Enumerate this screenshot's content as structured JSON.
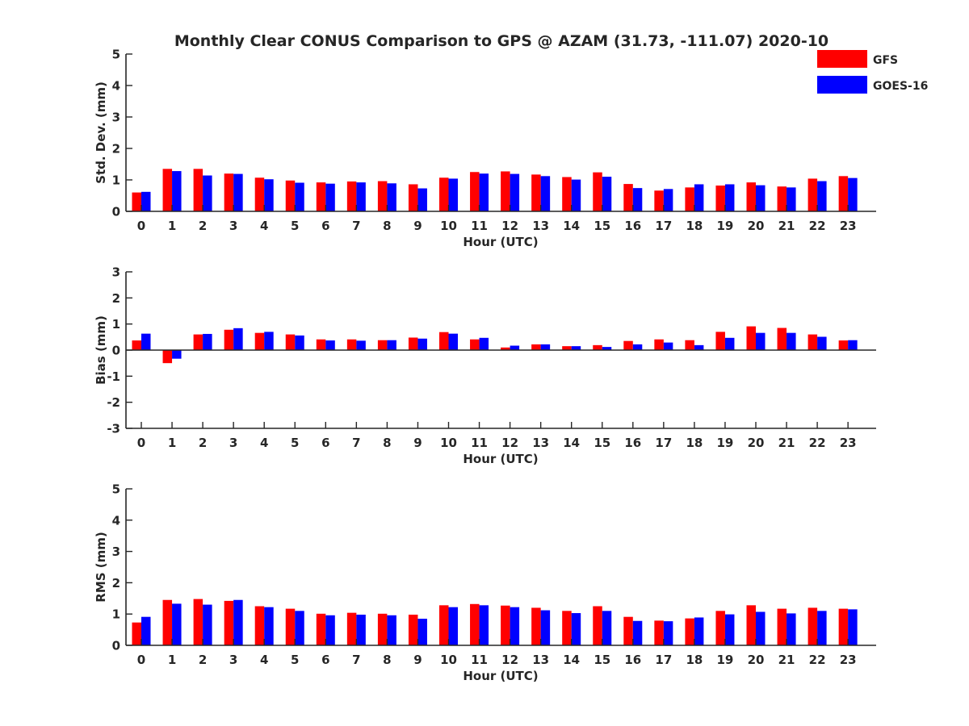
{
  "figure": {
    "title": "Monthly Clear CONUS Comparison to GPS @ AZAM (31.73, -111.07) 2020-10",
    "legend": [
      {
        "name": "GFS",
        "color": "#ff0000"
      },
      {
        "name": "GOES-16",
        "color": "#0000ff"
      }
    ],
    "legend_position": "top-right"
  },
  "chart_data": [
    {
      "type": "bar",
      "categories": [
        "0",
        "1",
        "2",
        "3",
        "4",
        "5",
        "6",
        "7",
        "8",
        "9",
        "10",
        "11",
        "12",
        "13",
        "14",
        "15",
        "16",
        "17",
        "18",
        "19",
        "20",
        "21",
        "22",
        "23"
      ],
      "xlabel": "Hour (UTC)",
      "ylabel": "Std. Dev. (mm)",
      "ylim": [
        0,
        5
      ],
      "yticks": [
        "0",
        "1",
        "2",
        "3",
        "4",
        "5"
      ],
      "grid": false,
      "series": [
        {
          "name": "GFS",
          "color": "#ff0000",
          "values": [
            0.6,
            1.35,
            1.35,
            1.2,
            1.07,
            0.98,
            0.92,
            0.95,
            0.96,
            0.86,
            1.07,
            1.25,
            1.27,
            1.17,
            1.09,
            1.24,
            0.87,
            0.66,
            0.76,
            0.82,
            0.92,
            0.79,
            1.04,
            1.12
          ]
        },
        {
          "name": "GOES-16",
          "color": "#0000ff",
          "values": [
            0.62,
            1.28,
            1.14,
            1.19,
            1.02,
            0.91,
            0.88,
            0.92,
            0.89,
            0.73,
            1.04,
            1.2,
            1.19,
            1.12,
            1.01,
            1.1,
            0.74,
            0.71,
            0.86,
            0.86,
            0.83,
            0.76,
            0.96,
            1.06
          ]
        }
      ]
    },
    {
      "type": "bar",
      "categories": [
        "0",
        "1",
        "2",
        "3",
        "4",
        "5",
        "6",
        "7",
        "8",
        "9",
        "10",
        "11",
        "12",
        "13",
        "14",
        "15",
        "16",
        "17",
        "18",
        "19",
        "20",
        "21",
        "22",
        "23"
      ],
      "xlabel": "Hour (UTC)",
      "ylabel": "Bias (mm)",
      "ylim": [
        -3,
        3
      ],
      "yticks": [
        "-3",
        "-2",
        "-1",
        "0",
        "1",
        "2",
        "3"
      ],
      "grid": false,
      "series": [
        {
          "name": "GFS",
          "color": "#ff0000",
          "values": [
            0.37,
            -0.5,
            0.6,
            0.78,
            0.66,
            0.6,
            0.41,
            0.41,
            0.38,
            0.48,
            0.69,
            0.41,
            0.1,
            0.22,
            0.15,
            0.19,
            0.35,
            0.41,
            0.38,
            0.7,
            0.91,
            0.85,
            0.6,
            0.37
          ]
        },
        {
          "name": "GOES-16",
          "color": "#0000ff",
          "values": [
            0.63,
            -0.33,
            0.62,
            0.84,
            0.7,
            0.56,
            0.37,
            0.36,
            0.38,
            0.44,
            0.63,
            0.47,
            0.17,
            0.22,
            0.15,
            0.12,
            0.22,
            0.29,
            0.19,
            0.47,
            0.66,
            0.66,
            0.51,
            0.38
          ]
        }
      ]
    },
    {
      "type": "bar",
      "categories": [
        "0",
        "1",
        "2",
        "3",
        "4",
        "5",
        "6",
        "7",
        "8",
        "9",
        "10",
        "11",
        "12",
        "13",
        "14",
        "15",
        "16",
        "17",
        "18",
        "19",
        "20",
        "21",
        "22",
        "23"
      ],
      "xlabel": "Hour (UTC)",
      "ylabel": "RMS (mm)",
      "ylim": [
        0,
        5
      ],
      "yticks": [
        "0",
        "1",
        "2",
        "3",
        "4",
        "5"
      ],
      "grid": false,
      "series": [
        {
          "name": "GFS",
          "color": "#ff0000",
          "values": [
            0.73,
            1.45,
            1.48,
            1.42,
            1.25,
            1.17,
            1.01,
            1.04,
            1.01,
            0.98,
            1.28,
            1.32,
            1.27,
            1.2,
            1.1,
            1.25,
            0.91,
            0.79,
            0.86,
            1.1,
            1.28,
            1.17,
            1.2,
            1.17
          ]
        },
        {
          "name": "GOES-16",
          "color": "#0000ff",
          "values": [
            0.91,
            1.33,
            1.3,
            1.45,
            1.22,
            1.1,
            0.96,
            0.98,
            0.96,
            0.85,
            1.22,
            1.28,
            1.22,
            1.12,
            1.03,
            1.1,
            0.78,
            0.77,
            0.89,
            0.99,
            1.07,
            1.02,
            1.1,
            1.15
          ]
        }
      ]
    }
  ]
}
